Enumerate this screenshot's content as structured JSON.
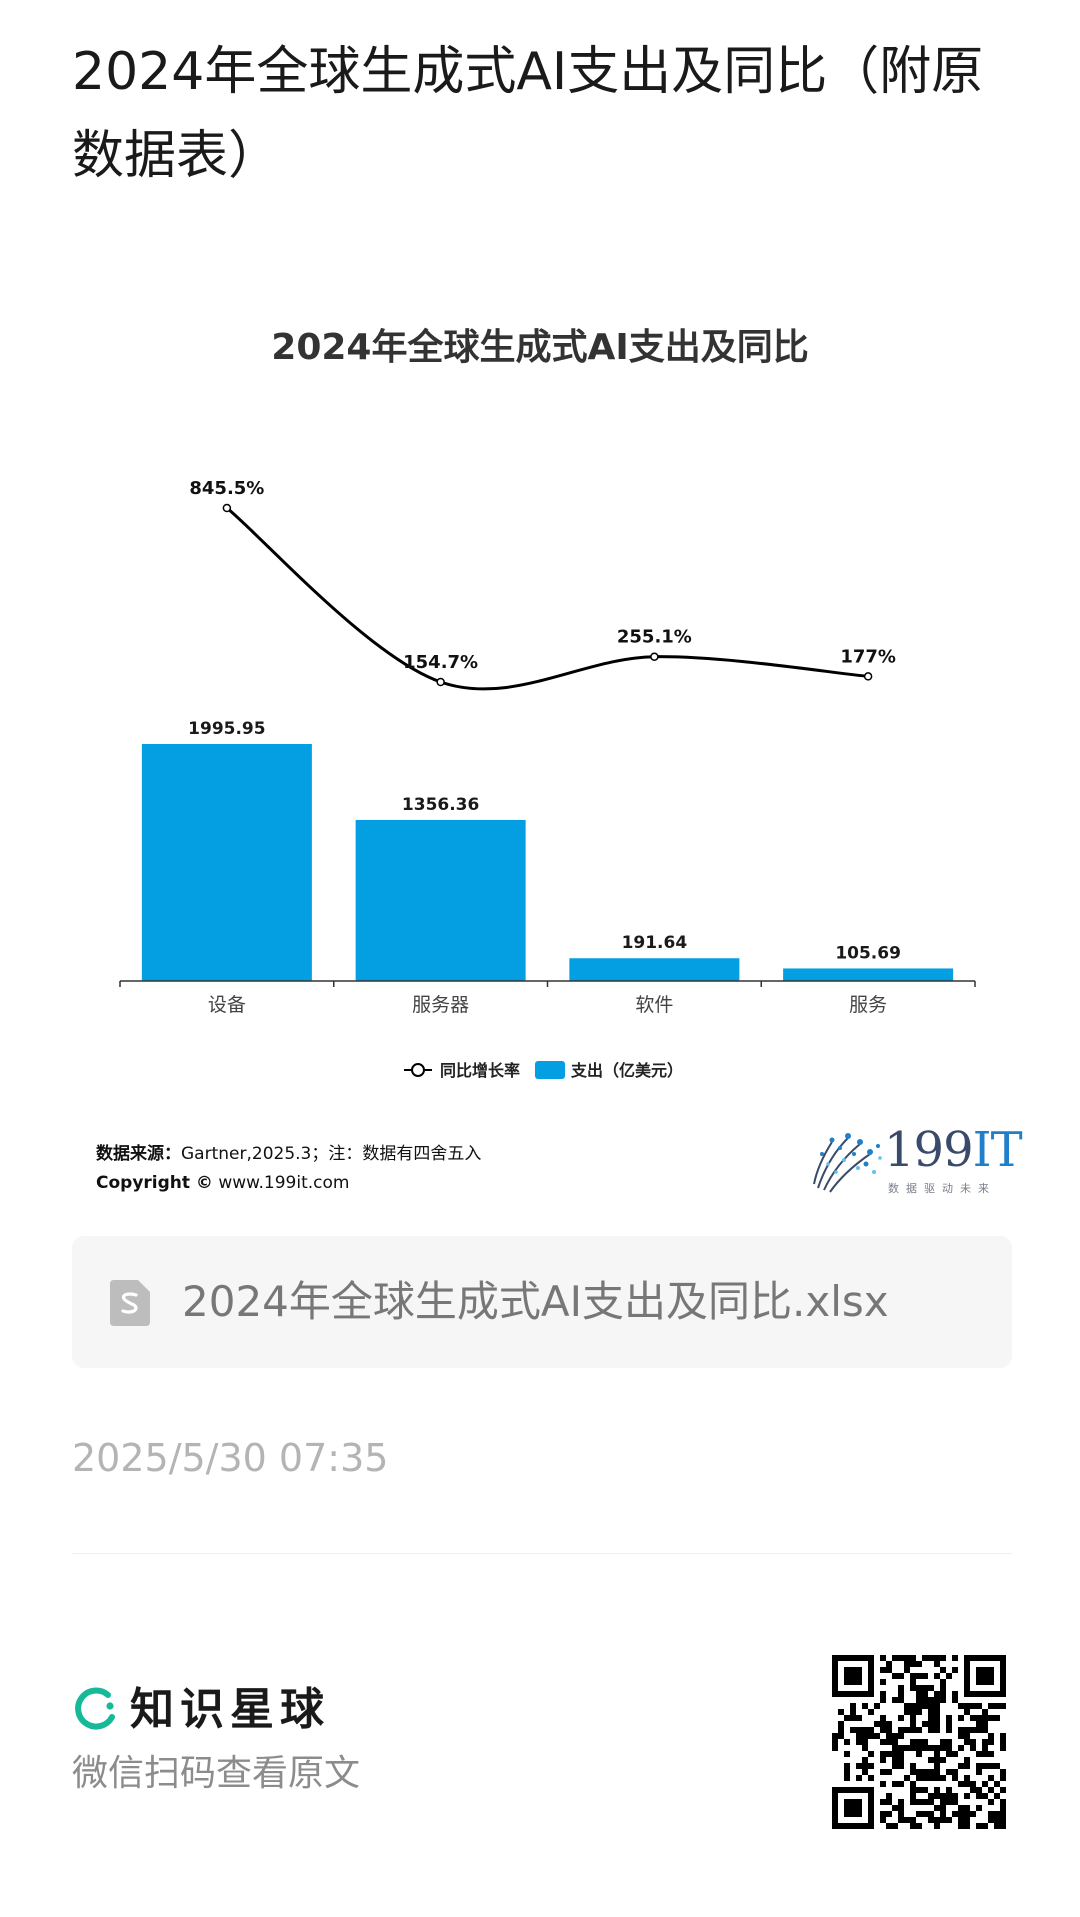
{
  "page": {
    "title": "2024年全球生成式AI支出及同比（附原数据表）"
  },
  "chart_data": {
    "type": "bar+line",
    "title": "2024年全球生成式AI支出及同比",
    "categories": [
      "设备",
      "服务器",
      "软件",
      "服务"
    ],
    "series": [
      {
        "name": "支出（亿美元）",
        "type": "bar",
        "values": [
          1995.95,
          1356.36,
          191.64,
          105.69
        ],
        "labels": [
          "1995.95",
          "1356.36",
          "191.64",
          "105.69"
        ],
        "color": "#049fe2"
      },
      {
        "name": "同比增长率",
        "type": "line",
        "values": [
          845.5,
          154.7,
          255.1,
          177
        ],
        "labels": [
          "845.5%",
          "154.7%",
          "255.1%",
          "177%"
        ],
        "color": "#000000"
      }
    ],
    "legend_position": "bottom",
    "grid": false
  },
  "source": {
    "label": "数据来源：",
    "text": "Gartner,2025.3；注：数据有四舍五入",
    "copyright_label": "Copyright ©",
    "copyright_site": "www.199it.com"
  },
  "logo": {
    "name_number": "199",
    "name_suffix": "IT",
    "slogan": "数据驱动未来"
  },
  "file": {
    "name": "2024年全球生成式AI支出及同比.xlsx",
    "icon": "spreadsheet-file-icon"
  },
  "timestamp": "2025/5/30 07:35",
  "footer": {
    "brand_name": "知识星球",
    "hint": "微信扫码查看原文",
    "brand_color": "#16b998"
  }
}
